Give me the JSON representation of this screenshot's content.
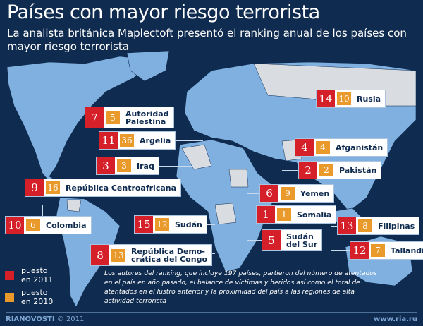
{
  "header": {
    "title": "Países con mayor riesgo terrorista",
    "subtitle": "La analista británica Maplectoft presentó el ranking anual de los países con mayor riesgo terrorista"
  },
  "colors": {
    "background": "#0f2b4f",
    "land": "#7fb0e0",
    "highlight": "#d9dde2",
    "rank_2011": "#d5202a",
    "rank_2010": "#e99a2a"
  },
  "countries": [
    {
      "name": "Rusia",
      "r2011": "14",
      "r2010": "10"
    },
    {
      "name": "Autoridad\nPalestina",
      "r2011": "7",
      "r2010": "5"
    },
    {
      "name": "Argelia",
      "r2011": "11",
      "r2010": "36"
    },
    {
      "name": "Iraq",
      "r2011": "3",
      "r2010": "3"
    },
    {
      "name": "República Centroafricana",
      "r2011": "9",
      "r2010": "16"
    },
    {
      "name": "Afganistán",
      "r2011": "4",
      "r2010": "4"
    },
    {
      "name": "Pakistán",
      "r2011": "2",
      "r2010": "2"
    },
    {
      "name": "Yemen",
      "r2011": "6",
      "r2010": "9"
    },
    {
      "name": "Somalia",
      "r2011": "1",
      "r2010": "1"
    },
    {
      "name": "Sudán\ndel Sur",
      "r2011": "5"
    },
    {
      "name": "Colombia",
      "r2011": "10",
      "r2010": "6"
    },
    {
      "name": "Sudán",
      "r2011": "15",
      "r2010": "12"
    },
    {
      "name": "República Demo-\ncrática del Congo",
      "r2011": "8",
      "r2010": "13"
    },
    {
      "name": "Filipinas",
      "r2011": "13",
      "r2010": "8"
    },
    {
      "name": "Tallandia",
      "r2011": "12",
      "r2010": "7"
    }
  ],
  "legend": {
    "rank_2011": "puesto\nen 2011",
    "rank_2010": "puesto\nen 2010"
  },
  "note": "Los autores del ranking, que incluye 197 países, partieron del número de atentados en el país en año pasado, el balance de víctimas y heridos así como el total de atentados en el lustro anterior y la proximidad del país a las regiones de alta actividad terrorista",
  "footer": {
    "brand": "RIANOVOSTI",
    "copyright": "© 2011",
    "url": "www.ria.ru"
  }
}
